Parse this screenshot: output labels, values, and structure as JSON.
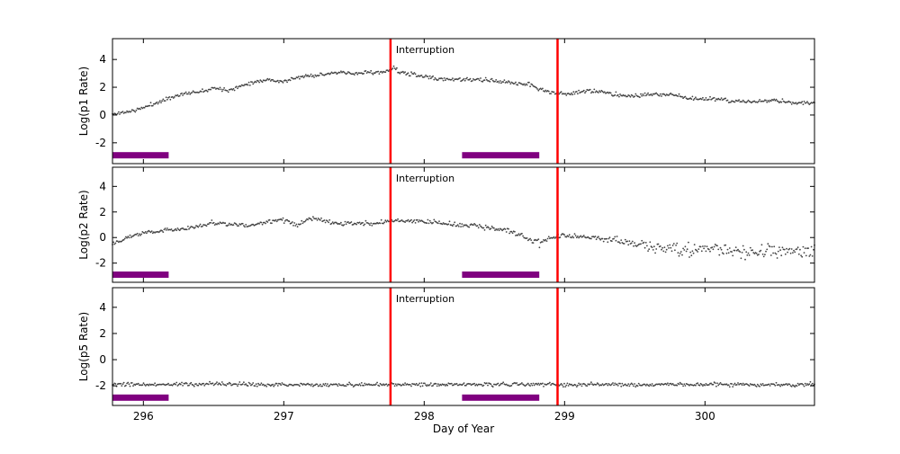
{
  "figure": {
    "background": "#ffffff",
    "frame_color": "#000000"
  },
  "chart_data": {
    "type": "scatter",
    "grid": false,
    "legend": false,
    "x": {
      "label": "Day of Year",
      "lim": [
        295.78,
        300.78
      ],
      "ticks": [
        296,
        297,
        298,
        299,
        300
      ],
      "tick_labels": [
        "296",
        "297",
        "298",
        "299",
        "300"
      ]
    },
    "y": {
      "lim": [
        -3.5,
        5.5
      ],
      "ticks": [
        -2,
        0,
        2,
        4
      ],
      "tick_labels": [
        "-2",
        "0",
        "2",
        "4"
      ]
    },
    "vlines": {
      "x": [
        297.76,
        298.95
      ],
      "color": "#ff0000",
      "label": "Interruption"
    },
    "bars": {
      "color": "#800080",
      "y": -2.9,
      "spans": [
        [
          295.78,
          296.18
        ],
        [
          298.27,
          298.82
        ]
      ]
    },
    "panels": [
      {
        "name": "p1",
        "ylabel": "Log(p1 Rate)",
        "marker_color": "#444444",
        "seed": 11,
        "n_points": 680,
        "anchors": [
          [
            295.78,
            0.05,
            0.06
          ],
          [
            295.95,
            0.35,
            0.06
          ],
          [
            296.1,
            0.9,
            0.07
          ],
          [
            296.25,
            1.45,
            0.06
          ],
          [
            296.4,
            1.7,
            0.06
          ],
          [
            296.5,
            1.95,
            0.06
          ],
          [
            296.62,
            1.8,
            0.06
          ],
          [
            296.75,
            2.3,
            0.06
          ],
          [
            296.88,
            2.55,
            0.06
          ],
          [
            297.0,
            2.4,
            0.06
          ],
          [
            297.12,
            2.75,
            0.06
          ],
          [
            297.25,
            2.9,
            0.06
          ],
          [
            297.4,
            3.05,
            0.06
          ],
          [
            297.5,
            2.95,
            0.06
          ],
          [
            297.6,
            3.1,
            0.06
          ],
          [
            297.72,
            3.05,
            0.06
          ],
          [
            297.78,
            3.45,
            0.08
          ],
          [
            297.82,
            3.1,
            0.08
          ],
          [
            297.95,
            2.85,
            0.07
          ],
          [
            298.1,
            2.6,
            0.07
          ],
          [
            298.3,
            2.55,
            0.07
          ],
          [
            298.45,
            2.5,
            0.07
          ],
          [
            298.6,
            2.35,
            0.07
          ],
          [
            298.75,
            2.2,
            0.07
          ],
          [
            298.85,
            1.75,
            0.07
          ],
          [
            298.95,
            1.55,
            0.07
          ],
          [
            299.05,
            1.55,
            0.07
          ],
          [
            299.15,
            1.75,
            0.07
          ],
          [
            299.3,
            1.6,
            0.07
          ],
          [
            299.45,
            1.35,
            0.07
          ],
          [
            299.6,
            1.45,
            0.07
          ],
          [
            299.75,
            1.5,
            0.07
          ],
          [
            299.9,
            1.2,
            0.07
          ],
          [
            300.05,
            1.15,
            0.07
          ],
          [
            300.2,
            1.0,
            0.07
          ],
          [
            300.35,
            0.95,
            0.07
          ],
          [
            300.5,
            1.05,
            0.07
          ],
          [
            300.65,
            0.85,
            0.07
          ],
          [
            300.78,
            0.9,
            0.07
          ]
        ]
      },
      {
        "name": "p2",
        "ylabel": "Log(p2 Rate)",
        "marker_color": "#444444",
        "seed": 22,
        "n_points": 680,
        "anchors": [
          [
            295.78,
            -0.45,
            0.08
          ],
          [
            295.9,
            0.1,
            0.08
          ],
          [
            296.05,
            0.45,
            0.08
          ],
          [
            296.2,
            0.6,
            0.08
          ],
          [
            296.35,
            0.75,
            0.08
          ],
          [
            296.5,
            1.15,
            0.08
          ],
          [
            296.62,
            1.05,
            0.08
          ],
          [
            296.75,
            0.9,
            0.08
          ],
          [
            296.9,
            1.25,
            0.08
          ],
          [
            297.0,
            1.35,
            0.1
          ],
          [
            297.1,
            1.05,
            0.1
          ],
          [
            297.2,
            1.45,
            0.1
          ],
          [
            297.35,
            1.15,
            0.08
          ],
          [
            297.5,
            1.05,
            0.08
          ],
          [
            297.65,
            1.15,
            0.08
          ],
          [
            297.78,
            1.35,
            0.08
          ],
          [
            297.9,
            1.25,
            0.08
          ],
          [
            298.05,
            1.25,
            0.08
          ],
          [
            298.2,
            1.0,
            0.08
          ],
          [
            298.35,
            0.95,
            0.08
          ],
          [
            298.5,
            0.7,
            0.08
          ],
          [
            298.62,
            0.45,
            0.1
          ],
          [
            298.72,
            0.0,
            0.12
          ],
          [
            298.82,
            -0.45,
            0.12
          ],
          [
            298.9,
            0.0,
            0.1
          ],
          [
            298.98,
            0.1,
            0.1
          ],
          [
            299.1,
            0.05,
            0.1
          ],
          [
            299.25,
            -0.05,
            0.1
          ],
          [
            299.4,
            -0.25,
            0.12
          ],
          [
            299.55,
            -0.6,
            0.18
          ],
          [
            299.7,
            -0.85,
            0.22
          ],
          [
            299.9,
            -0.9,
            0.25
          ],
          [
            300.1,
            -1.0,
            0.25
          ],
          [
            300.3,
            -1.05,
            0.27
          ],
          [
            300.5,
            -1.0,
            0.27
          ],
          [
            300.65,
            -1.1,
            0.28
          ],
          [
            300.78,
            -1.15,
            0.28
          ]
        ]
      },
      {
        "name": "p5",
        "ylabel": "Log(p5 Rate)",
        "marker_color": "#444444",
        "seed": 33,
        "n_points": 680,
        "anchors": [
          [
            295.78,
            -1.92,
            0.07
          ],
          [
            296.5,
            -1.88,
            0.07
          ],
          [
            297.2,
            -1.93,
            0.07
          ],
          [
            298.0,
            -1.9,
            0.07
          ],
          [
            298.7,
            -1.88,
            0.07
          ],
          [
            299.4,
            -1.92,
            0.07
          ],
          [
            300.1,
            -1.9,
            0.07
          ],
          [
            300.78,
            -1.9,
            0.07
          ]
        ]
      }
    ]
  }
}
